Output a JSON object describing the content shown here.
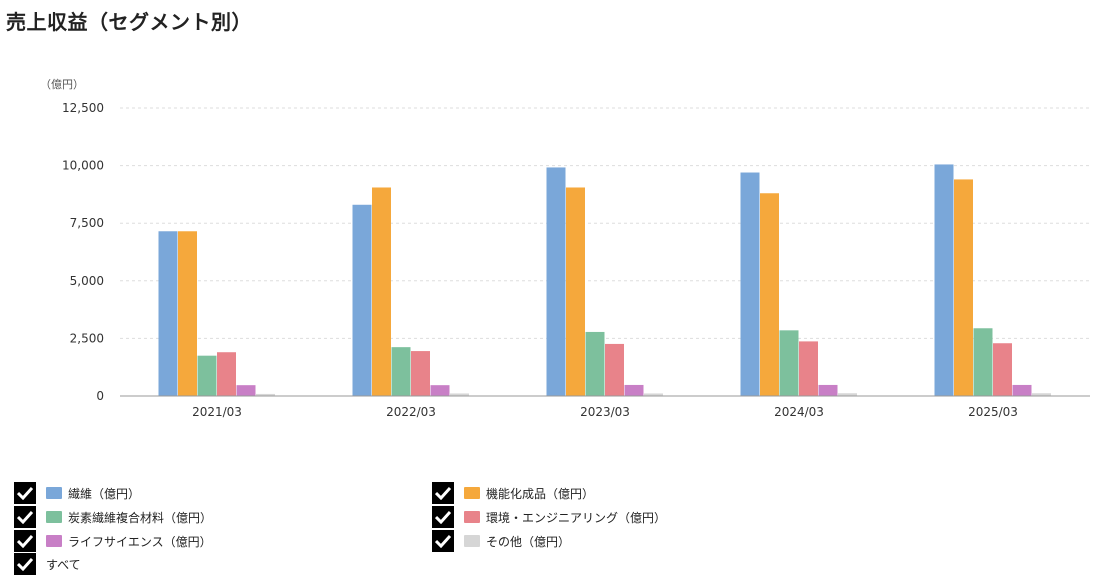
{
  "title": "売上収益（セグメント別）",
  "unit_label": "（億円）",
  "chart_data": {
    "type": "bar",
    "categories": [
      "2021/03",
      "2022/03",
      "2023/03",
      "2024/03",
      "2025/03"
    ],
    "ylim": [
      0,
      12500
    ],
    "yticks": [
      0,
      2500,
      5000,
      7500,
      10000,
      12500
    ],
    "ytick_labels": [
      "0",
      "2,500",
      "5,000",
      "7,500",
      "10,000",
      "12,500"
    ],
    "grid": true,
    "series": [
      {
        "name": "繊維（億円）",
        "color": "#7aa7d9",
        "values": [
          7150,
          8300,
          9920,
          9700,
          10050
        ]
      },
      {
        "name": "機能化成品（億円）",
        "color": "#f5a83c",
        "values": [
          7150,
          9050,
          9050,
          8800,
          9400
        ]
      },
      {
        "name": "炭素繊維複合材料（億円）",
        "color": "#7dc09d",
        "values": [
          1750,
          2120,
          2780,
          2850,
          2940
        ]
      },
      {
        "name": "環境・エンジニアリング（億円）",
        "color": "#e8838a",
        "values": [
          1900,
          1950,
          2260,
          2370,
          2290
        ]
      },
      {
        "name": "ライフサイエンス（億円）",
        "color": "#c87fc6",
        "values": [
          470,
          470,
          480,
          480,
          480
        ]
      },
      {
        "name": "その他（億円）",
        "color": "#d6d6d6",
        "values": [
          90,
          110,
          110,
          120,
          120
        ]
      }
    ]
  },
  "legend": {
    "all_label": "すべて"
  }
}
